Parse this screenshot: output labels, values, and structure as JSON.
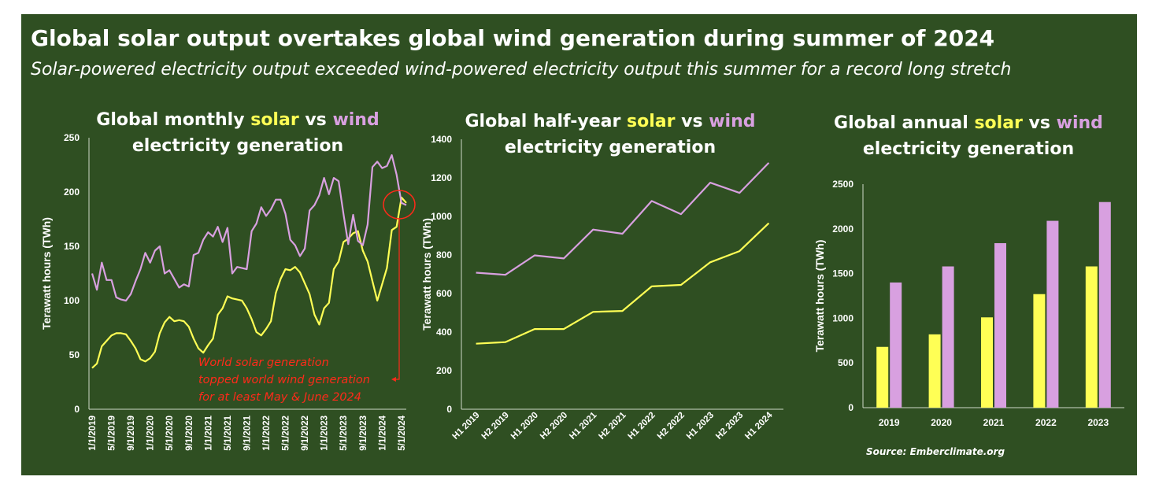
{
  "header": {
    "title": "Global solar output overtakes global wind generation during summer of 2024",
    "subtitle": "Solar-powered electricity output exceeded wind-powered electricity output this summer for a record long stretch"
  },
  "colors": {
    "background": "#2f4f22",
    "solar": "#ffff55",
    "wind": "#d8a0e0",
    "annotation": "#ff2a1a",
    "text": "#ffffff"
  },
  "chart_data": [
    {
      "type": "line",
      "title_parts": [
        "Global monthly ",
        "solar",
        " vs ",
        "wind",
        "electricity generation"
      ],
      "ylabel": "Terawatt hours (TWh)",
      "ylim": [
        0,
        250
      ],
      "yticks": [
        0,
        50,
        100,
        150,
        200,
        250
      ],
      "x_tick_labels": [
        "1/1/2019",
        "5/1/2019",
        "9/1/2019",
        "1/1/2020",
        "5/1/2020",
        "9/1/2020",
        "1/1/2021",
        "5/1/2021",
        "9/1/2021",
        "1/1/2022",
        "5/1/2022",
        "9/1/2022",
        "1/1/2023",
        "5/1/2023",
        "9/1/2023",
        "1/1/2024",
        "5/1/2024"
      ],
      "x_start": "2019-01",
      "series": [
        {
          "name": "solar",
          "values": [
            38,
            42,
            58,
            63,
            68,
            70,
            70,
            69,
            63,
            56,
            46,
            44,
            47,
            53,
            70,
            80,
            85,
            81,
            82,
            81,
            76,
            65,
            56,
            52,
            59,
            65,
            87,
            93,
            104,
            102,
            101,
            100,
            93,
            83,
            71,
            68,
            74,
            81,
            107,
            120,
            129,
            128,
            131,
            126,
            116,
            106,
            87,
            78,
            93,
            98,
            129,
            136,
            154,
            157,
            162,
            164,
            146,
            136,
            118,
            100,
            115,
            130,
            165,
            168,
            195,
            190
          ]
        },
        {
          "name": "wind",
          "values": [
            125,
            110,
            135,
            119,
            119,
            103,
            101,
            100,
            106,
            118,
            129,
            144,
            135,
            146,
            150,
            125,
            128,
            120,
            112,
            115,
            113,
            142,
            144,
            156,
            163,
            159,
            168,
            154,
            167,
            125,
            131,
            130,
            129,
            164,
            171,
            186,
            178,
            184,
            193,
            193,
            180,
            156,
            151,
            141,
            148,
            183,
            188,
            197,
            213,
            198,
            213,
            210,
            180,
            152,
            179,
            155,
            151,
            170,
            223,
            228,
            222,
            224,
            234,
            216,
            190,
            188
          ]
        }
      ],
      "annotation": [
        "World solar generation",
        "topped world wind generation",
        "for at least May & June 2024"
      ]
    },
    {
      "type": "line",
      "title_parts": [
        "Global half-year ",
        "solar",
        " vs ",
        "wind",
        "electricity generation"
      ],
      "ylabel": "Terawatt hours (TWh)",
      "ylim": [
        0,
        1400
      ],
      "yticks": [
        0,
        200,
        400,
        600,
        800,
        1000,
        1200,
        1400
      ],
      "categories": [
        "H1 2019",
        "H2 2019",
        "H1 2020",
        "H2 2020",
        "H1 2021",
        "H2 2021",
        "H1 2022",
        "H2 2022",
        "H1 2023",
        "H2 2023",
        "H1 2024"
      ],
      "series": [
        {
          "name": "solar",
          "values": [
            340,
            348,
            416,
            416,
            505,
            510,
            637,
            645,
            762,
            820,
            965
          ]
        },
        {
          "name": "wind",
          "values": [
            708,
            697,
            798,
            782,
            932,
            910,
            1080,
            1012,
            1175,
            1122,
            1278
          ]
        }
      ]
    },
    {
      "type": "bar",
      "title_parts": [
        "Global annual ",
        "solar",
        " vs ",
        "wind",
        "electricity generation"
      ],
      "ylabel": "Terawatt hours (TWh)",
      "ylim": [
        0,
        2500
      ],
      "yticks": [
        0,
        500,
        1000,
        1500,
        2000,
        2500
      ],
      "categories": [
        "2019",
        "2020",
        "2021",
        "2022",
        "2023"
      ],
      "series": [
        {
          "name": "solar",
          "values": [
            680,
            820,
            1010,
            1270,
            1580
          ]
        },
        {
          "name": "wind",
          "values": [
            1400,
            1580,
            1840,
            2090,
            2300
          ]
        }
      ]
    }
  ],
  "source": "Source: Emberclimate.org"
}
